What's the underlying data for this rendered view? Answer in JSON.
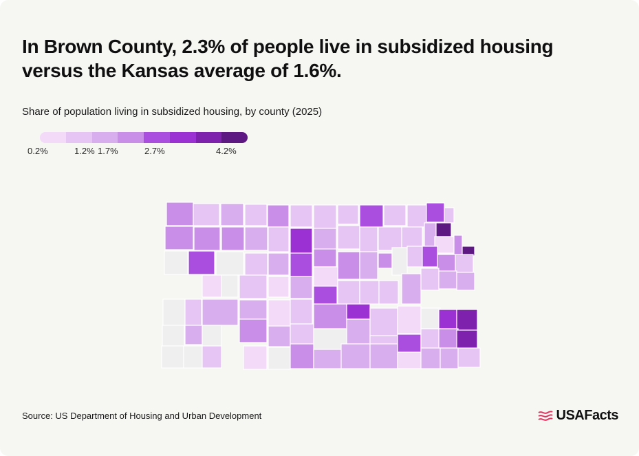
{
  "headline": "In Brown County, 2.3% of people live in subsidized housing versus the Kansas average of 1.6%.",
  "subtitle": "Share of population living in subsidized housing, by county (2025)",
  "legend": {
    "labels": [
      "0.2%",
      "1.2%",
      "1.7%",
      "2.7%",
      "4.2%"
    ],
    "colors": [
      "#f2daf8",
      "#e6c4f3",
      "#d9aeef",
      "#c98fe8",
      "#a94ede",
      "#9b31d2",
      "#7e21ac",
      "#5e1882"
    ],
    "no_data_color": "#efefef"
  },
  "map": {
    "region": "Kansas",
    "highlighted_county": "Brown County"
  },
  "source": "Source: US Department of Housing and Urban Development",
  "brand": {
    "name": "USAFacts",
    "accent": "#e0335e"
  }
}
